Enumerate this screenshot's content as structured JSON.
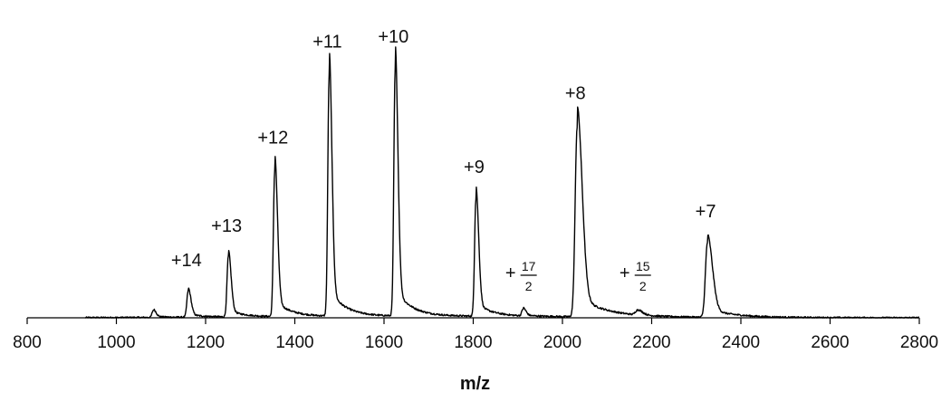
{
  "chart_data": {
    "type": "line",
    "title": "",
    "xlabel": "m/z",
    "ylabel": "",
    "xlim": [
      800,
      2800
    ],
    "ylim": [
      0,
      1.0
    ],
    "grid": false,
    "x_ticks": [
      800,
      1000,
      1200,
      1400,
      1600,
      1800,
      2000,
      2200,
      2400,
      2600,
      2800
    ],
    "x_tick_labels": [
      "800",
      "1000",
      "1200",
      "1400",
      "1600",
      "1800",
      "2000",
      "2200",
      "2400",
      "2600",
      "2800"
    ],
    "series": [
      {
        "peaks": [
          {
            "mz": 1083,
            "intensity": 0.03
          },
          {
            "mz": 1161,
            "intensity": 0.11
          },
          {
            "mz": 1251,
            "intensity": 0.25
          },
          {
            "mz": 1355,
            "intensity": 0.61
          },
          {
            "mz": 1477,
            "intensity": 1.0
          },
          {
            "mz": 1625,
            "intensity": 1.02
          },
          {
            "mz": 1806,
            "intensity": 0.49
          },
          {
            "mz": 1912,
            "intensity": 0.03
          },
          {
            "mz": 2033,
            "intensity": 0.79
          },
          {
            "mz": 2168,
            "intensity": 0.02
          },
          {
            "mz": 2325,
            "intensity": 0.31
          }
        ]
      }
    ],
    "annotations": [
      {
        "text": "+14",
        "mz": 1161
      },
      {
        "text": "+13",
        "mz": 1251
      },
      {
        "text": "+12",
        "mz": 1355
      },
      {
        "text": "+11",
        "mz": 1477
      },
      {
        "text": "+10",
        "mz": 1625
      },
      {
        "text": "+9",
        "mz": 1806
      },
      {
        "text": "+8",
        "mz": 2033
      },
      {
        "text": "+7",
        "mz": 2325
      }
    ],
    "fraction_annotations": [
      {
        "sign": "+",
        "numerator": "17",
        "denominator": "2",
        "mz": 1912
      },
      {
        "sign": "+",
        "numerator": "15",
        "denominator": "2",
        "mz": 2168
      }
    ]
  }
}
